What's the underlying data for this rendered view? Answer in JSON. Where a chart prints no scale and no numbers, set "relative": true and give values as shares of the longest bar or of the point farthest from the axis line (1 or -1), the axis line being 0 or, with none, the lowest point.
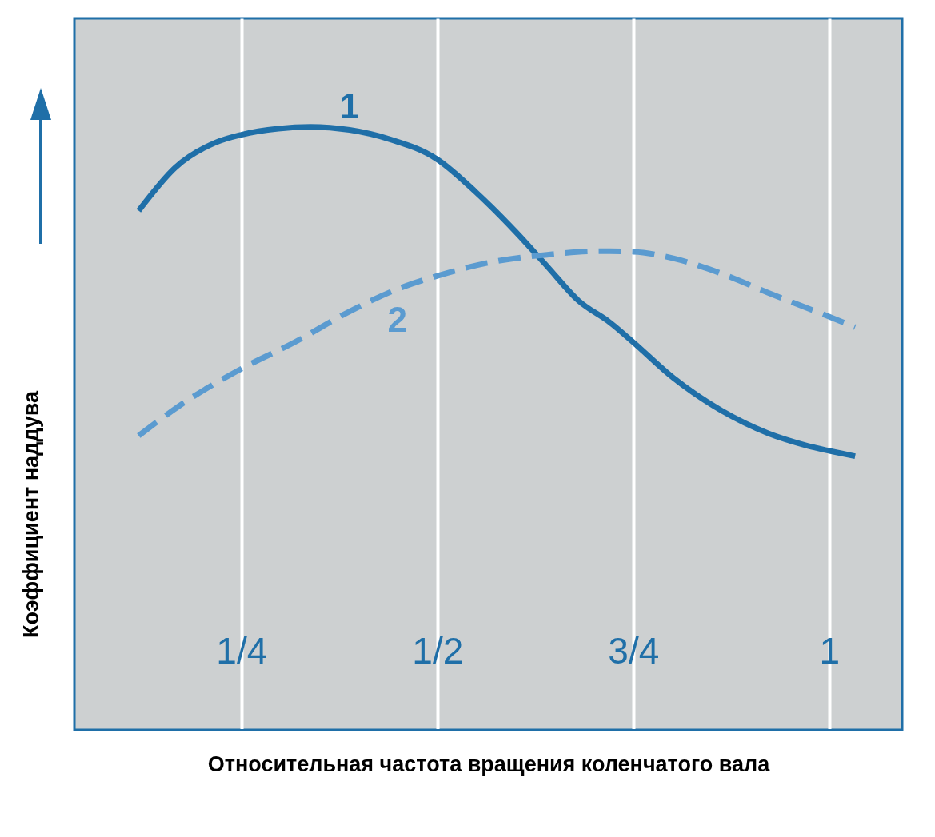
{
  "chart_data": {
    "type": "line",
    "relative": true,
    "xlabel": "Относительная частота вращения коленчатого вала",
    "ylabel": "Коэффициент наддува",
    "xlim": [
      0.037,
      1.093
    ],
    "xticks": [
      {
        "value": 0.25,
        "label": "1/4"
      },
      {
        "value": 0.5,
        "label": "1/2"
      },
      {
        "value": 0.75,
        "label": "3/4"
      },
      1
    ],
    "grid": "x",
    "series": [
      {
        "name": "1",
        "color": "#1f6fa8",
        "line_style": "solid",
        "x": [
          0.119,
          0.166,
          0.217,
          0.25,
          0.297,
          0.338,
          0.388,
          0.438,
          0.5,
          0.549,
          0.6,
          0.64,
          0.68,
          0.721,
          0.75,
          0.801,
          0.862,
          0.922,
          0.973,
          1.033
        ],
        "values": [
          0.861,
          0.933,
          0.974,
          0.987,
          0.997,
          1,
          0.995,
          0.98,
          0.946,
          0.892,
          0.826,
          0.769,
          0.712,
          0.675,
          0.643,
          0.584,
          0.53,
          0.492,
          0.471,
          0.454
        ]
      },
      {
        "name": "2",
        "color": "#5b9bd0",
        "line_style": "dashed",
        "x": [
          0.119,
          0.176,
          0.25,
          0.318,
          0.388,
          0.449,
          0.5,
          0.57,
          0.64,
          0.711,
          0.75,
          0.801,
          0.862,
          0.922,
          0.983,
          1.033
        ],
        "values": [
          0.488,
          0.542,
          0.599,
          0.643,
          0.694,
          0.731,
          0.753,
          0.776,
          0.788,
          0.794,
          0.793,
          0.782,
          0.757,
          0.725,
          0.694,
          0.668
        ]
      }
    ]
  }
}
